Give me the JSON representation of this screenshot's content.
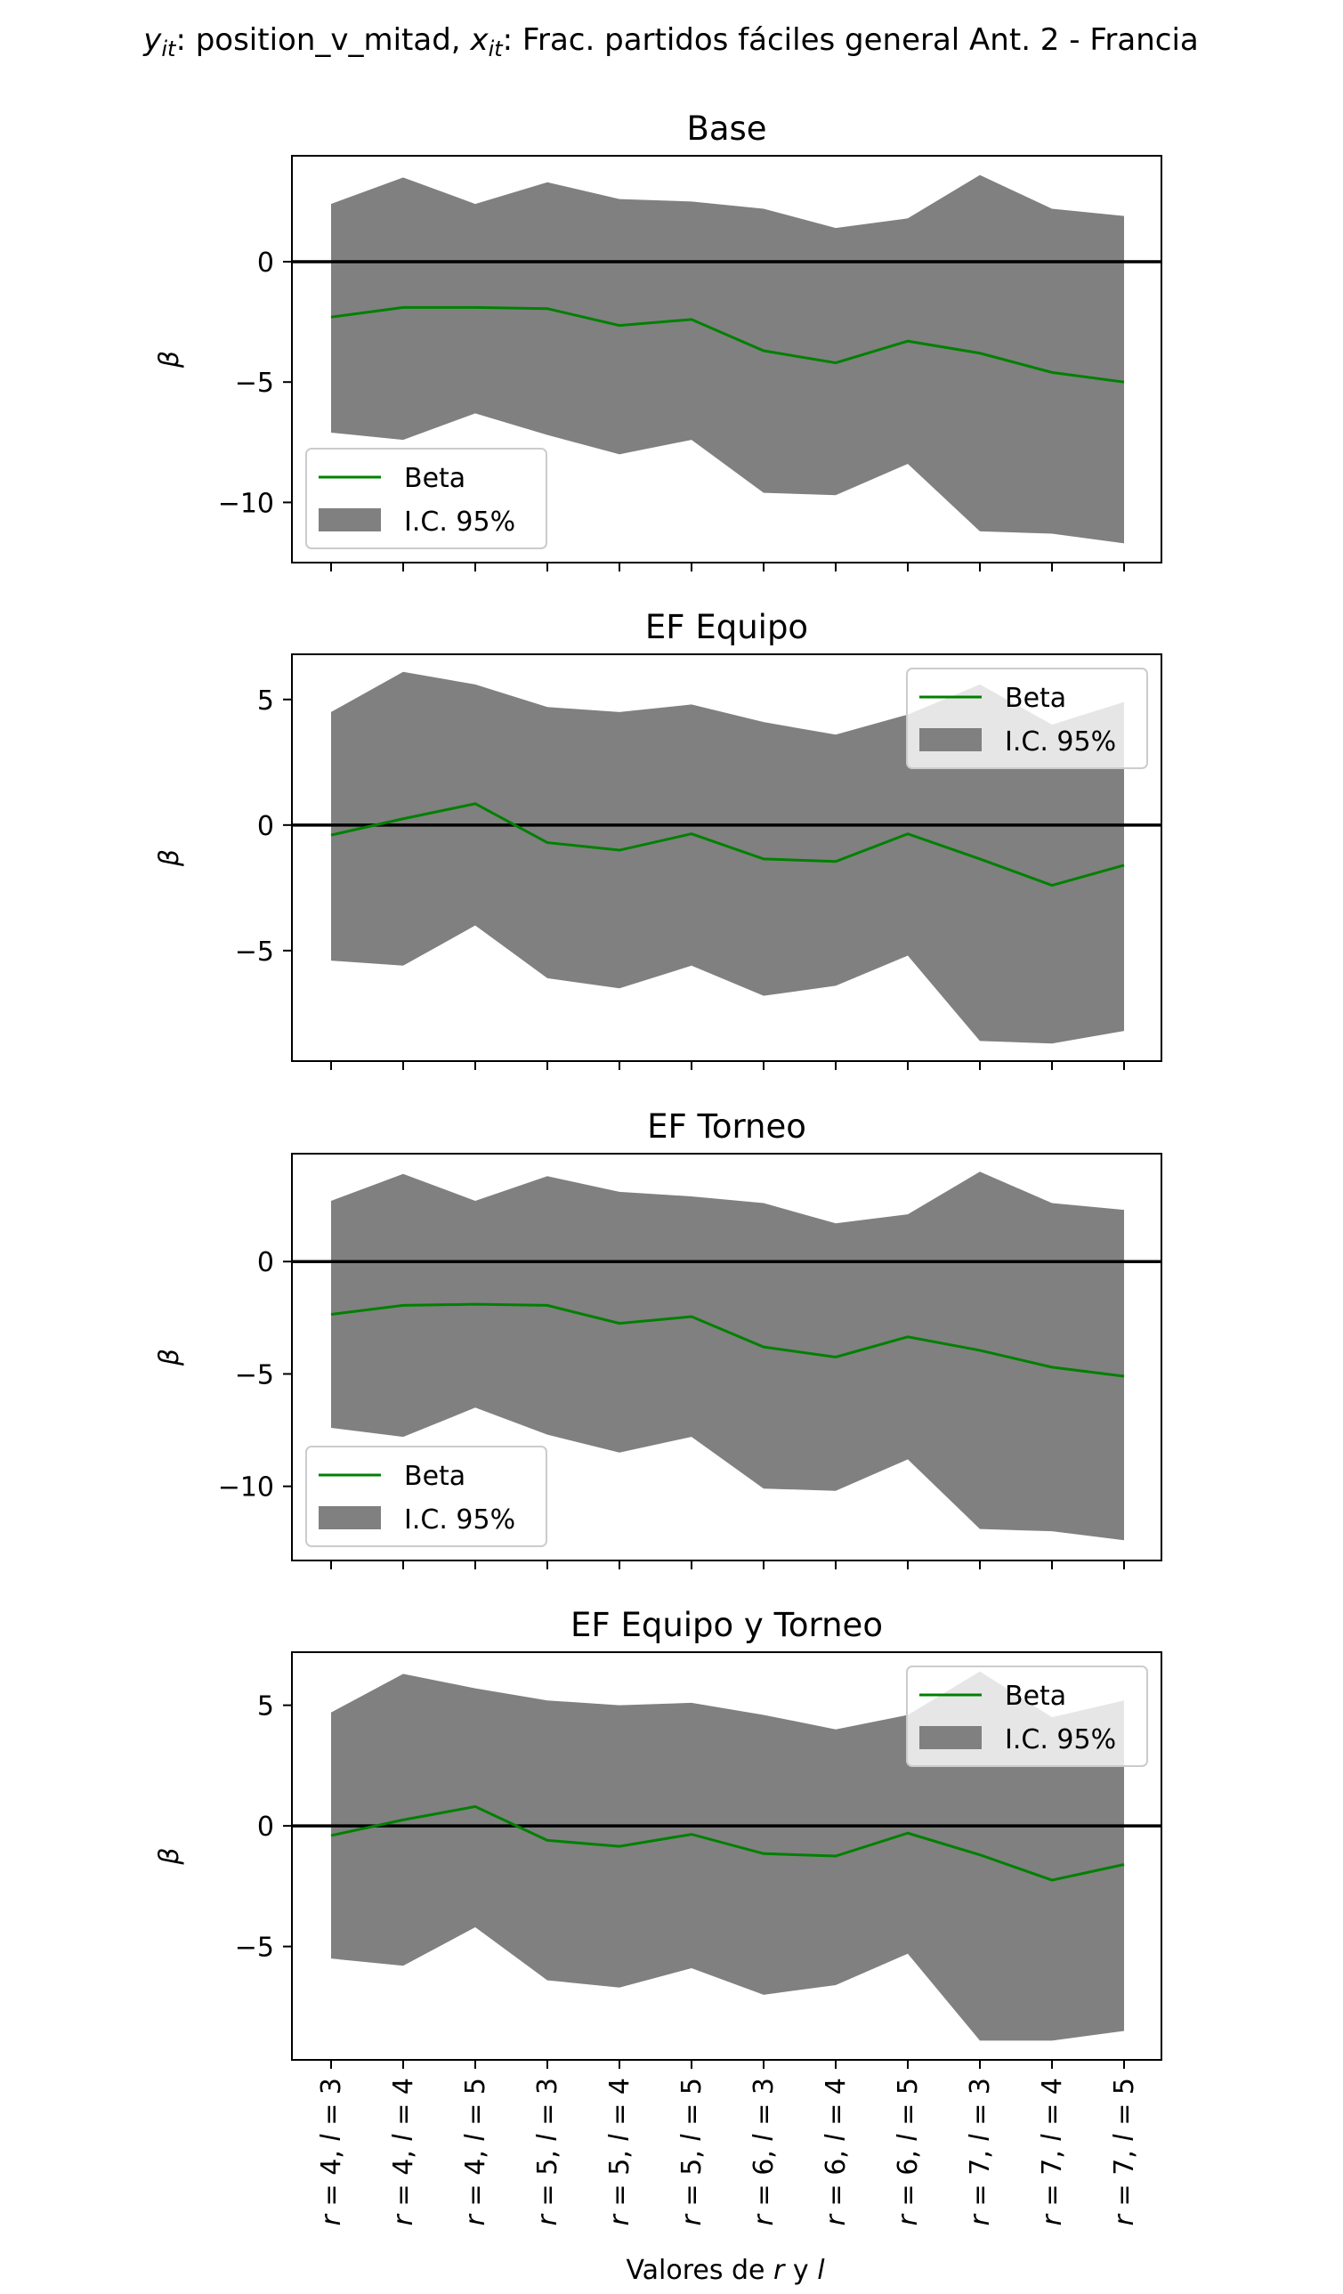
{
  "figure": {
    "suptitle": "y_it: position_v_mitad, x_it: Frac. partidos fáciles general Ant. 2 - Francia",
    "suptitle_parts": [
      {
        "t": "y",
        "style": "italic"
      },
      {
        "t": "it",
        "style": "italic-sub"
      },
      {
        "t": ": position_v_mitad, ",
        "style": "normal"
      },
      {
        "t": "x",
        "style": "italic"
      },
      {
        "t": "it",
        "style": "italic-sub"
      },
      {
        "t": ": Frac. partidos fáciles general Ant. 2 - Francia",
        "style": "normal"
      }
    ],
    "xlabel": "Valores de r y l",
    "xlabel_parts": [
      {
        "t": "Valores de ",
        "style": "normal"
      },
      {
        "t": "r",
        "style": "italic"
      },
      {
        "t": " y ",
        "style": "normal"
      },
      {
        "t": "l",
        "style": "italic"
      }
    ],
    "ylabel": "β"
  },
  "colors": {
    "line": "#008000",
    "band": "#808080",
    "zero_line": "#000000",
    "frame": "#000000"
  },
  "chart_data": [
    {
      "type": "line",
      "title": "Base",
      "ylabel": "β",
      "xlabel": "",
      "categories": [
        "r = 4, l = 3",
        "r = 4, l = 4",
        "r = 4, l = 5",
        "r = 5, l = 3",
        "r = 5, l = 4",
        "r = 5, l = 5",
        "r = 6, l = 3",
        "r = 6, l = 4",
        "r = 6, l = 5",
        "r = 7, l = 3",
        "r = 7, l = 4",
        "r = 7, l = 5"
      ],
      "ylim": [
        -12.5,
        4.4
      ],
      "yticks": [
        0,
        -5,
        -10
      ],
      "ytick_labels": [
        "0",
        "−5",
        "−10"
      ],
      "series": [
        {
          "name": "Beta",
          "kind": "line",
          "values": [
            -2.3,
            -1.9,
            -1.9,
            -1.95,
            -2.65,
            -2.4,
            -3.7,
            -4.2,
            -3.3,
            -3.8,
            -4.6,
            -5.0
          ]
        },
        {
          "name": "I.C. 95%",
          "kind": "band",
          "lower": [
            -7.1,
            -7.4,
            -6.3,
            -7.2,
            -8.0,
            -7.4,
            -9.6,
            -9.7,
            -8.4,
            -11.2,
            -11.3,
            -11.7
          ],
          "upper": [
            2.4,
            3.5,
            2.4,
            3.3,
            2.6,
            2.5,
            2.2,
            1.4,
            1.8,
            3.6,
            2.2,
            1.9
          ]
        }
      ],
      "zero_line": 0,
      "legend": {
        "position": "lower-left",
        "entries": [
          "Beta",
          "I.C. 95%"
        ]
      }
    },
    {
      "type": "line",
      "title": "EF Equipo",
      "ylabel": "β",
      "xlabel": "",
      "categories": [
        "r = 4, l = 3",
        "r = 4, l = 4",
        "r = 4, l = 5",
        "r = 5, l = 3",
        "r = 5, l = 4",
        "r = 5, l = 5",
        "r = 6, l = 3",
        "r = 6, l = 4",
        "r = 6, l = 5",
        "r = 7, l = 3",
        "r = 7, l = 4",
        "r = 7, l = 5"
      ],
      "ylim": [
        -9.4,
        6.8
      ],
      "yticks": [
        5,
        0,
        -5
      ],
      "ytick_labels": [
        "5",
        "0",
        "−5"
      ],
      "series": [
        {
          "name": "Beta",
          "kind": "line",
          "values": [
            -0.4,
            0.25,
            0.85,
            -0.7,
            -1.0,
            -0.35,
            -1.35,
            -1.45,
            -0.35,
            -1.35,
            -2.4,
            -1.6
          ]
        },
        {
          "name": "I.C. 95%",
          "kind": "band",
          "lower": [
            -5.4,
            -5.6,
            -4.0,
            -6.1,
            -6.5,
            -5.6,
            -6.8,
            -6.4,
            -5.2,
            -8.6,
            -8.7,
            -8.2
          ],
          "upper": [
            4.5,
            6.1,
            5.6,
            4.7,
            4.5,
            4.8,
            4.1,
            3.6,
            4.4,
            5.6,
            4.0,
            4.9
          ]
        }
      ],
      "zero_line": 0,
      "legend": {
        "position": "upper-right",
        "entries": [
          "Beta",
          "I.C. 95%"
        ]
      }
    },
    {
      "type": "line",
      "title": "EF Torneo",
      "ylabel": "β",
      "xlabel": "",
      "categories": [
        "r = 4, l = 3",
        "r = 4, l = 4",
        "r = 4, l = 5",
        "r = 5, l = 3",
        "r = 5, l = 4",
        "r = 5, l = 5",
        "r = 6, l = 3",
        "r = 6, l = 4",
        "r = 6, l = 5",
        "r = 7, l = 3",
        "r = 7, l = 4",
        "r = 7, l = 5"
      ],
      "ylim": [
        -13.3,
        4.8
      ],
      "yticks": [
        0,
        -5,
        -10
      ],
      "ytick_labels": [
        "0",
        "−5",
        "−10"
      ],
      "series": [
        {
          "name": "Beta",
          "kind": "line",
          "values": [
            -2.35,
            -1.95,
            -1.9,
            -1.95,
            -2.75,
            -2.45,
            -3.8,
            -4.25,
            -3.35,
            -3.95,
            -4.7,
            -5.1
          ]
        },
        {
          "name": "I.C. 95%",
          "kind": "band",
          "lower": [
            -7.4,
            -7.8,
            -6.5,
            -7.7,
            -8.5,
            -7.8,
            -10.1,
            -10.2,
            -8.8,
            -11.9,
            -12.0,
            -12.4
          ],
          "upper": [
            2.7,
            3.9,
            2.7,
            3.8,
            3.1,
            2.9,
            2.6,
            1.7,
            2.1,
            4.0,
            2.6,
            2.3
          ]
        }
      ],
      "zero_line": 0,
      "legend": {
        "position": "lower-left",
        "entries": [
          "Beta",
          "I.C. 95%"
        ]
      }
    },
    {
      "type": "line",
      "title": "EF Equipo y Torneo",
      "xlabel": "Valores de r y l",
      "ylabel": "β",
      "categories": [
        "r = 4, l = 3",
        "r = 4, l = 4",
        "r = 4, l = 5",
        "r = 5, l = 3",
        "r = 5, l = 4",
        "r = 5, l = 5",
        "r = 6, l = 3",
        "r = 6, l = 4",
        "r = 6, l = 5",
        "r = 7, l = 3",
        "r = 7, l = 4",
        "r = 7, l = 5"
      ],
      "ylim": [
        -9.7,
        7.2
      ],
      "yticks": [
        5,
        0,
        -5
      ],
      "ytick_labels": [
        "5",
        "0",
        "−5"
      ],
      "series": [
        {
          "name": "Beta",
          "kind": "line",
          "values": [
            -0.4,
            0.25,
            0.8,
            -0.6,
            -0.85,
            -0.35,
            -1.15,
            -1.25,
            -0.3,
            -1.2,
            -2.25,
            -1.6
          ]
        },
        {
          "name": "I.C. 95%",
          "kind": "band",
          "lower": [
            -5.5,
            -5.8,
            -4.2,
            -6.4,
            -6.7,
            -5.9,
            -7.0,
            -6.6,
            -5.3,
            -8.9,
            -8.9,
            -8.5
          ],
          "upper": [
            4.7,
            6.3,
            5.7,
            5.2,
            5.0,
            5.1,
            4.6,
            4.0,
            4.6,
            6.4,
            4.5,
            5.2
          ]
        }
      ],
      "zero_line": 0,
      "legend": {
        "position": "upper-right",
        "entries": [
          "Beta",
          "I.C. 95%"
        ]
      }
    }
  ]
}
